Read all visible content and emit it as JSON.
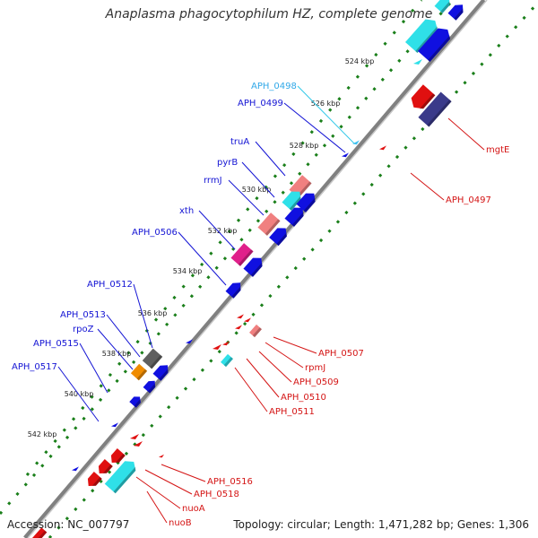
{
  "title": "Anaplasma phagocytophilum HZ, complete genome",
  "accession_text": "Accession: NC_007797",
  "topology_text": "Topology: circular; Length: 1,471,282 bp; Genes: 1,306",
  "colors": {
    "backbone": "#808080",
    "dots": "#1a7f1a",
    "plus_label": "#1414d4",
    "minus_label": "#d41414",
    "plus_gene": "#1010e0",
    "minus_gene": "#e01010",
    "cyan_gene": "#2fe0e8",
    "pink_gene": "#f08080",
    "magenta_gene": "#e0208a",
    "orange_gene": "#f08c00",
    "gray_gene": "#606060",
    "navy_gene": "#3a3a8a"
  },
  "ticks": [
    "524 kbp",
    "526 kbp",
    "528 kbp",
    "530 kbp",
    "532 kbp",
    "534 kbp",
    "536 kbp",
    "538 kbp",
    "540 kbp",
    "542 kbp"
  ],
  "labels_plus": [
    "APH_0498",
    "APH_0499",
    "truA",
    "pyrB",
    "rrmJ",
    "xth",
    "APH_0506",
    "APH_0512",
    "APH_0513",
    "rpoZ",
    "APH_0515",
    "APH_0517"
  ],
  "labels_minus": [
    "mgtE",
    "APH_0497",
    "APH_0507",
    "rpmJ",
    "APH_0509",
    "APH_0510",
    "APH_0511",
    "APH_0516",
    "APH_0518",
    "nuoA",
    "nuoB"
  ]
}
